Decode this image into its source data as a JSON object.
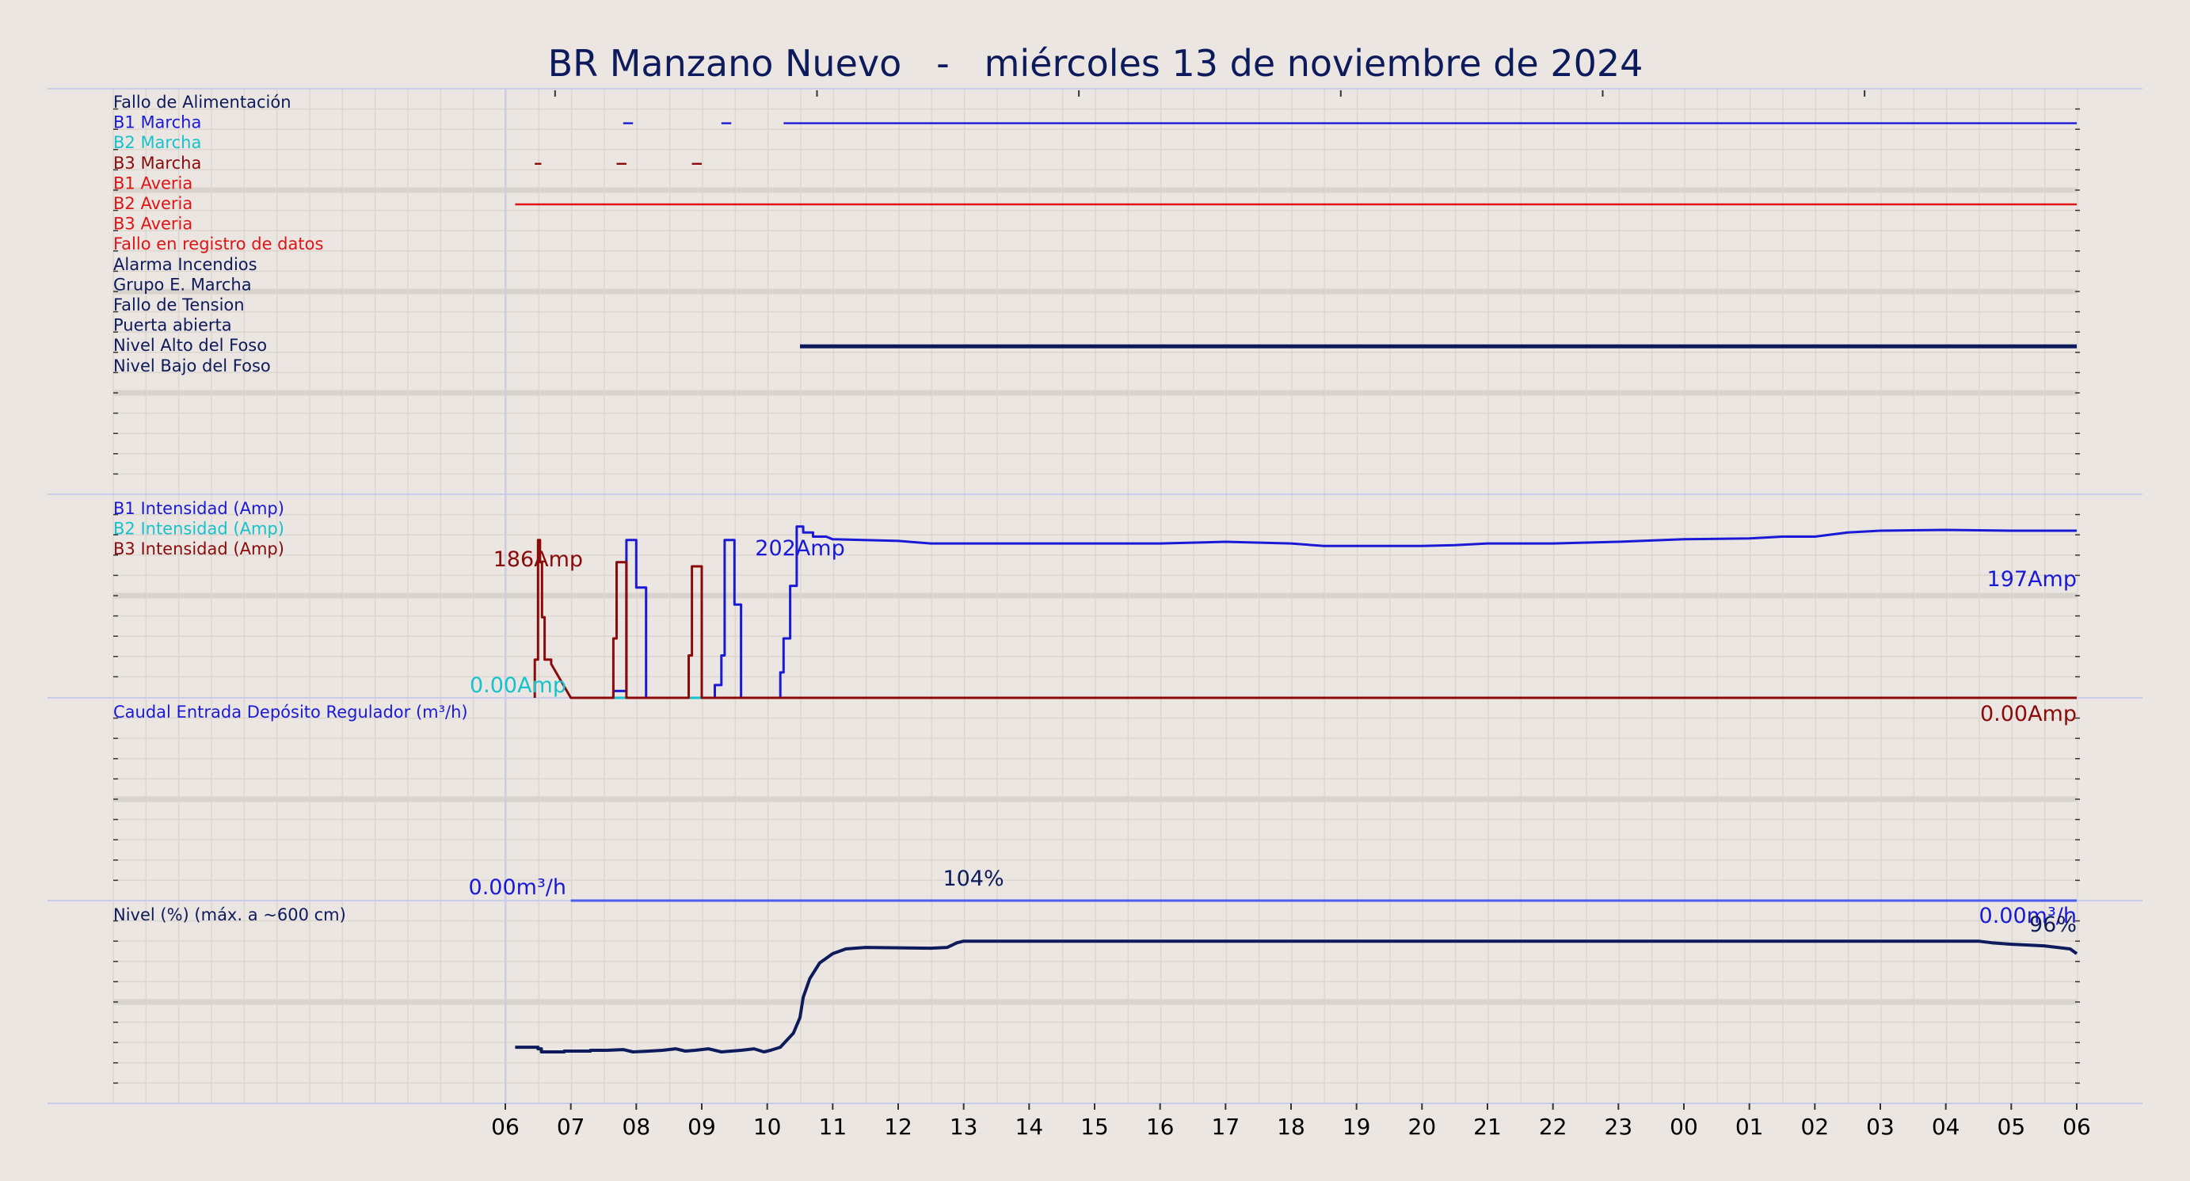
{
  "colors": {
    "background": "#ebe6e1",
    "grid": "#ddd6cf",
    "grid_thick": "#d9d3cd",
    "panel_border": "#c8cce8",
    "navy": "#0d1a5c",
    "blue": "#1a1ad6",
    "cyan": "#16c2cc",
    "darkred": "#8b0a0a",
    "red": "#e01414",
    "lightblue": "#4a5ff2"
  },
  "chart_data": {
    "type": "line",
    "title": "BR Manzano Nuevo   -   miércoles 13 de noviembre de 2024",
    "x_tick_labels": [
      "06",
      "07",
      "08",
      "09",
      "10",
      "11",
      "12",
      "13",
      "14",
      "15",
      "16",
      "17",
      "18",
      "19",
      "20",
      "21",
      "22",
      "23",
      "00",
      "01",
      "02",
      "03",
      "04",
      "05",
      "06"
    ],
    "xlim": [
      0,
      24
    ],
    "panels": [
      {
        "name": "digital-signals",
        "rows": [
          {
            "label": "Fallo de Alimentación",
            "color": "#0d1a5c",
            "segments": []
          },
          {
            "label": "B1 Marcha",
            "color": "#1a1ad6",
            "segments": [
              [
                1.8,
                1.95
              ],
              [
                3.3,
                3.45
              ],
              [
                4.25,
                24
              ]
            ]
          },
          {
            "label": "B2 Marcha",
            "color": "#16c2cc",
            "segments": []
          },
          {
            "label": "B3 Marcha",
            "color": "#8b0a0a",
            "segments": [
              [
                0.45,
                0.55
              ],
              [
                1.7,
                1.85
              ],
              [
                2.85,
                3.0
              ]
            ]
          },
          {
            "label": "B1 Averia",
            "color": "#e01414",
            "segments": []
          },
          {
            "label": "B2 Averia",
            "color": "#e01414",
            "segments": [
              [
                0.15,
                24
              ]
            ]
          },
          {
            "label": "B3 Averia",
            "color": "#e01414",
            "segments": []
          },
          {
            "label": "Fallo en registro de datos",
            "color": "#e01414",
            "segments": []
          },
          {
            "label": "Alarma Incendios",
            "color": "#0d1a5c",
            "segments": []
          },
          {
            "label": "Grupo E. Marcha",
            "color": "#0d1a5c",
            "segments": []
          },
          {
            "label": "Fallo de Tension",
            "color": "#0d1a5c",
            "segments": []
          },
          {
            "label": "Puerta abierta",
            "color": "#0d1a5c",
            "segments": []
          },
          {
            "label": "Nivel Alto del Foso",
            "color": "#0d1a5c",
            "segments": [
              [
                4.5,
                24
              ]
            ],
            "thick": true
          },
          {
            "label": "Nivel Bajo del Foso",
            "color": "#0d1a5c",
            "segments": []
          }
        ]
      },
      {
        "name": "intensidad",
        "ylim": [
          0,
          240
        ],
        "legend": [
          {
            "label": "B1 Intensidad (Amp)",
            "color": "#1a1ad6"
          },
          {
            "label": "B2 Intensidad (Amp)",
            "color": "#16c2cc"
          },
          {
            "label": "B3 Intensidad (Amp)",
            "color": "#8b0a0a"
          }
        ],
        "series": [
          {
            "name": "B1 Intensidad (Amp)",
            "color": "#1a1ad6",
            "x": [
              1.0,
              1.65,
              1.65,
              1.85,
              1.85,
              2.0,
              2.0,
              2.15,
              2.15,
              3.2,
              3.2,
              3.3,
              3.3,
              3.35,
              3.35,
              3.5,
              3.5,
              3.6,
              3.6,
              3.7,
              3.7,
              4.2,
              4.2,
              4.25,
              4.25,
              4.35,
              4.35,
              4.45,
              4.45,
              4.55,
              4.55,
              4.7,
              4.7,
              4.9,
              5,
              6,
              6.5,
              7,
              9,
              10,
              11,
              12,
              12.5,
              14,
              14.5,
              15,
              16,
              17,
              18,
              19,
              19.5,
              20,
              20.5,
              21,
              22,
              23,
              23.4,
              24
            ],
            "y": [
              0,
              0,
              8,
              8,
              186,
              186,
              130,
              130,
              0,
              0,
              15,
              15,
              50,
              50,
              186,
              186,
              110,
              110,
              0,
              0,
              0,
              0,
              30,
              30,
              70,
              70,
              132,
              132,
              202,
              202,
              195,
              195,
              190,
              190,
              187,
              185,
              182,
              182,
              182,
              182,
              184,
              182,
              179,
              179,
              180,
              182,
              182,
              184,
              187,
              188,
              190,
              190,
              195,
              197,
              198,
              197,
              197,
              197
            ],
            "end_label": "197Amp",
            "max_label": "202Amp"
          },
          {
            "name": "B2 Intensidad (Amp)",
            "color": "#16c2cc",
            "x": [
              1.0,
              24
            ],
            "y": [
              0,
              0
            ],
            "start_label": "0.00Amp"
          },
          {
            "name": "B3 Intensidad (Amp)",
            "color": "#8b0a0a",
            "x": [
              0.45,
              0.45,
              0.5,
              0.5,
              0.53,
              0.53,
              0.56,
              0.56,
              0.6,
              0.6,
              0.7,
              0.7,
              1.0,
              1.65,
              1.65,
              1.7,
              1.7,
              1.85,
              1.85,
              2.8,
              2.8,
              2.85,
              2.85,
              3.0,
              3.0,
              24
            ],
            "y": [
              0,
              45,
              45,
              186,
              186,
              160,
              160,
              95,
              95,
              45,
              45,
              40,
              0,
              0,
              70,
              70,
              160,
              160,
              0,
              0,
              50,
              50,
              155,
              155,
              0,
              0
            ],
            "end_label": "0.00Amp",
            "max_label": "186Amp"
          }
        ]
      },
      {
        "name": "caudal",
        "ylim": [
          0,
          400
        ],
        "legend": [
          {
            "label": "Caudal Entrada Depósito Regulador (m³/h)",
            "color": "#1a1ad6"
          }
        ],
        "series": [
          {
            "name": "Caudal Entrada Depósito Regulador (m³/h)",
            "color": "#4a5ff2",
            "x": [
              1.0,
              24
            ],
            "y": [
              0,
              0
            ],
            "start_label": "0.00m³/h",
            "end_label": "0.00m³/h"
          }
        ]
      },
      {
        "name": "nivel",
        "ylim": [
          0,
          130
        ],
        "legend": [
          {
            "label": "Nivel (%) (máx. a ~600 cm)",
            "color": "#0d1a5c"
          }
        ],
        "series": [
          {
            "name": "Nivel (%) (máx. a ~600 cm)",
            "color": "#0d1a5c",
            "x": [
              0.15,
              0.5,
              0.5,
              0.55,
              0.55,
              0.9,
              0.9,
              1.3,
              1.3,
              1.55,
              1.8,
              1.8,
              1.95,
              1.95,
              2.2,
              2.2,
              2.4,
              2.4,
              2.6,
              2.6,
              2.75,
              2.75,
              2.9,
              2.9,
              3.1,
              3.1,
              3.3,
              3.3,
              3.6,
              3.6,
              3.8,
              3.8,
              3.95,
              3.95,
              4.05,
              4.05,
              4.2,
              4.2,
              4.4,
              4.4,
              4.5,
              4.5,
              4.55,
              4.55,
              4.65,
              4.65,
              4.8,
              4.8,
              5.0,
              5.0,
              5.2,
              5.2,
              5.5,
              5.5,
              6.5,
              6.5,
              6.75,
              6.75,
              6.9,
              6.9,
              7.0,
              7.0,
              7.65,
              7.65,
              22.5,
              22.5,
              22.7,
              22.7,
              23.0,
              23.0,
              23.5,
              23.5,
              23.9,
              23.9,
              24
            ],
            "y": [
              36,
              36,
              35,
              35,
              33,
              33,
              33.5,
              33.5,
              34,
              34,
              34.5,
              34.5,
              33,
              33,
              33.5,
              33.5,
              34,
              34,
              35,
              35,
              33.5,
              33.5,
              34,
              34,
              35,
              35,
              33,
              33,
              34,
              34,
              35,
              35,
              33,
              33,
              34,
              34,
              36,
              36,
              45,
              45,
              55,
              55,
              68,
              68,
              80,
              80,
              90,
              90,
              96,
              96,
              99,
              99,
              100,
              100,
              99.5,
              99.5,
              100,
              100,
              103,
              103,
              104,
              104,
              104,
              104,
              104,
              104,
              103,
              103,
              102,
              102,
              101,
              101,
              99,
              99,
              96
            ],
            "max_label": "104%",
            "end_label": "96%"
          }
        ]
      }
    ],
    "grid": true
  }
}
